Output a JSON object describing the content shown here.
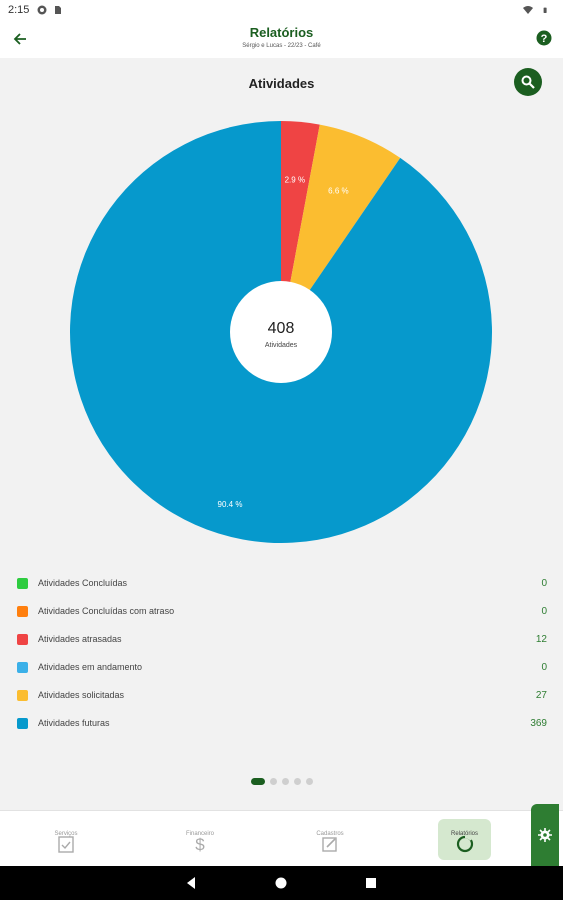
{
  "status_bar": {
    "time": "2:15",
    "icons": [
      "app-icon",
      "sim-icon",
      "wifi-icon",
      "battery-icon"
    ]
  },
  "app_bar": {
    "title": "Relatórios",
    "subtitle": "Sérgio e Lucas - 22/23 - Café",
    "back_icon": "arrow-left-icon",
    "help_icon": "help-circle-icon"
  },
  "section": {
    "title": "Atividades",
    "search_icon": "search-icon"
  },
  "chart_data": {
    "type": "pie",
    "donut_center_value": "408",
    "donut_center_label": "Atividades",
    "slices": [
      {
        "name": "Atividades Concluídas",
        "value": 0,
        "color": "#2ecc40",
        "label": ""
      },
      {
        "name": "Atividades Concluídas com atraso",
        "value": 0,
        "color": "#ff7f0e",
        "label": ""
      },
      {
        "name": "Atividades atrasadas",
        "value": 12,
        "color": "#ef4444",
        "label": "2.9 %"
      },
      {
        "name": "Atividades em andamento",
        "value": 0,
        "color": "#3bb0e8",
        "label": ""
      },
      {
        "name": "Atividades solicitadas",
        "value": 27,
        "color": "#fbbd30",
        "label": "6.6 %"
      },
      {
        "name": "Atividades futuras",
        "value": 369,
        "color": "#0699cc",
        "label": "90.4 %"
      }
    ]
  },
  "legend": [
    {
      "label": "Atividades Concluídas",
      "value": "0",
      "color": "#2ecc40"
    },
    {
      "label": "Atividades Concluídas com atraso",
      "value": "0",
      "color": "#ff7f0e"
    },
    {
      "label": "Atividades atrasadas",
      "value": "12",
      "color": "#ef4444"
    },
    {
      "label": "Atividades em andamento",
      "value": "0",
      "color": "#3bb0e8"
    },
    {
      "label": "Atividades solicitadas",
      "value": "27",
      "color": "#fbbd30"
    },
    {
      "label": "Atividades futuras",
      "value": "369",
      "color": "#0699cc"
    }
  ],
  "pager": {
    "count": 5,
    "active": 0
  },
  "bottom_nav": [
    {
      "label": "Serviços",
      "icon": "clipboard-check-icon"
    },
    {
      "label": "Financeiro",
      "icon": "dollar-icon"
    },
    {
      "label": "Cadastros",
      "icon": "edit-icon"
    },
    {
      "label": "Relatórios",
      "icon": "chart-ring-icon"
    }
  ],
  "settings_icon": "gear-icon"
}
